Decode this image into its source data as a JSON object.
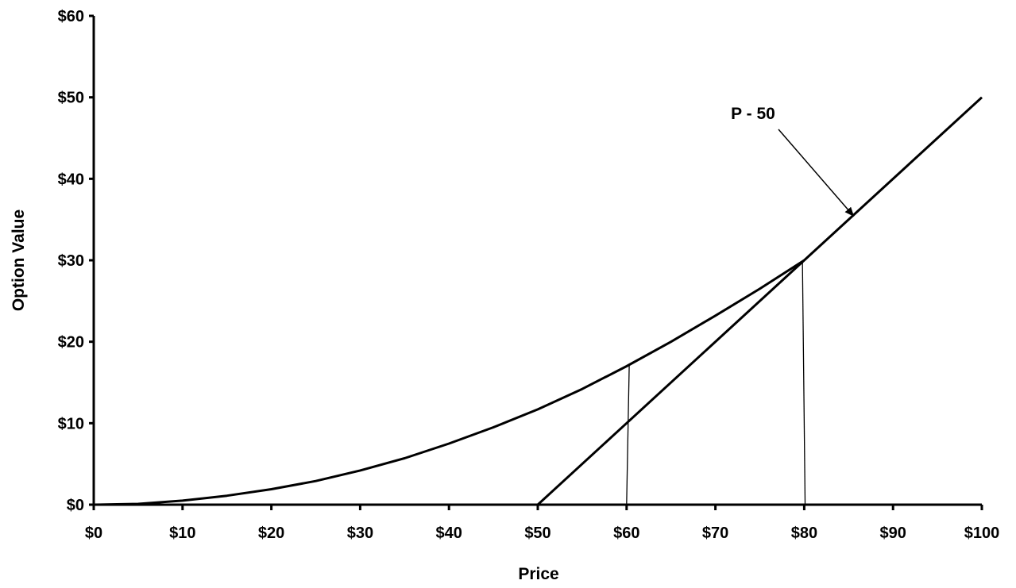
{
  "chart_data": {
    "type": "line",
    "title": "",
    "xlabel": "Price",
    "ylabel": "Option Value",
    "xlim": [
      0,
      100
    ],
    "ylim": [
      0,
      60
    ],
    "x_ticks": [
      "$0",
      "$10",
      "$20",
      "$30",
      "$40",
      "$50",
      "$60",
      "$70",
      "$80",
      "$90",
      "$100"
    ],
    "y_ticks": [
      "$0",
      "$10",
      "$20",
      "$30",
      "$40",
      "$50",
      "$60"
    ],
    "grid": false,
    "legend": "none",
    "series": [
      {
        "id": "option-value-curve",
        "x": [
          0,
          5,
          10,
          15,
          20,
          25,
          30,
          35,
          40,
          45,
          50,
          55,
          60,
          65,
          70,
          75,
          80
        ],
        "y": [
          0,
          0.1,
          0.5,
          1.1,
          1.9,
          2.9,
          4.2,
          5.7,
          7.5,
          9.5,
          11.7,
          14.2,
          17.0,
          20.0,
          23.2,
          26.5,
          30.0
        ]
      },
      {
        "id": "intrinsic-value-line",
        "x": [
          50,
          60,
          80,
          100
        ],
        "y": [
          0,
          10,
          30,
          50
        ]
      }
    ],
    "reference_lines": [
      {
        "id": "drop-line-60",
        "x_bottom": 60,
        "y_bottom": 0,
        "x_top": 60.3,
        "y_top": 17.3
      },
      {
        "id": "drop-line-80",
        "x_bottom": 80.1,
        "y_bottom": 0,
        "x_top": 79.8,
        "y_top": 29.8
      }
    ],
    "annotations": [
      {
        "id": "p-minus-50",
        "text": "P - 50",
        "points_to_x": 85.5,
        "points_to_y": 35.5
      }
    ],
    "colors": {
      "line": "#000000",
      "background": "#ffffff"
    }
  }
}
